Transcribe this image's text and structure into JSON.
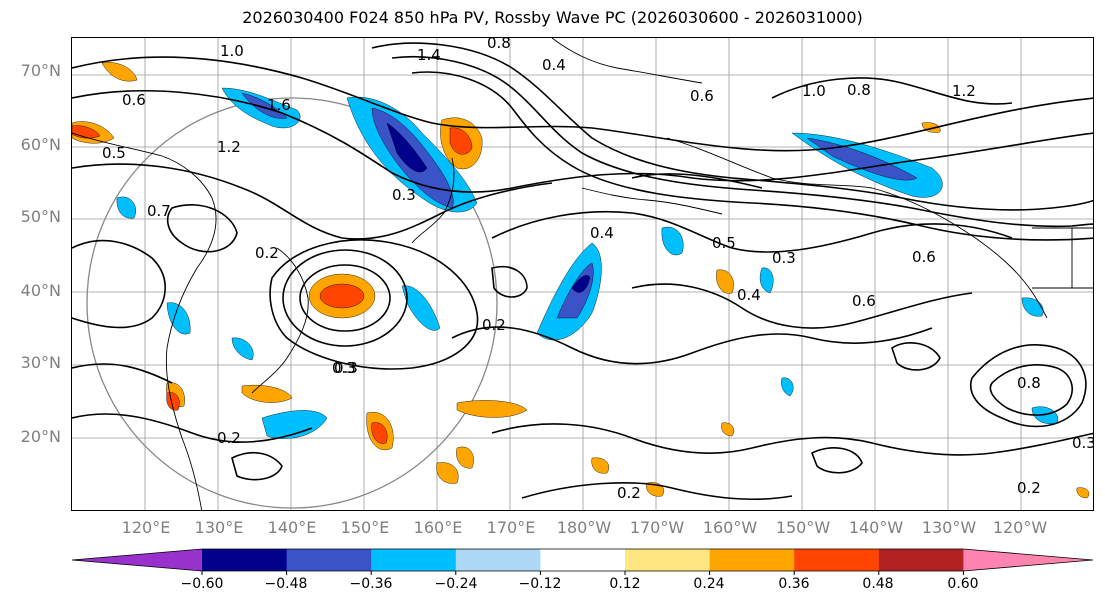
{
  "title": "2026030400 F024 850 hPa PV, Rossby Wave PC (2026030600 - 2026031000)",
  "axes": {
    "lat_labels": [
      "70°N",
      "60°N",
      "50°N",
      "40°N",
      "30°N",
      "20°N"
    ],
    "lon_labels": [
      "120°E",
      "130°E",
      "140°E",
      "150°E",
      "160°E",
      "170°E",
      "180°W",
      "170°W",
      "160°W",
      "150°W",
      "140°W",
      "130°W",
      "120°W"
    ]
  },
  "colorbar": {
    "colors": [
      "#9932cc",
      "#00008b",
      "#3a54c8",
      "#00bfff",
      "#add8f6",
      "#ffffff",
      "#ffe680",
      "#ffa500",
      "#ff4500",
      "#b22222",
      "#ff85b0"
    ],
    "tick_labels": [
      "−0.60",
      "−0.48",
      "−0.36",
      "−0.24",
      "−0.12",
      "0.12",
      "0.24",
      "0.36",
      "0.48",
      "0.60"
    ]
  },
  "contour_labels": [
    "1.0",
    "1.4",
    "0.8",
    "0.4",
    "0.6",
    "1.6",
    "1.2",
    "0.7",
    "0.5",
    "0.3",
    "0.2",
    "0.6",
    "0.4",
    "0.3",
    "0.2",
    "0.5",
    "1.0",
    "0.8",
    "1.2",
    "0.3",
    "0.6",
    "0.2",
    "0.2",
    "0.3",
    "0.8",
    "0.4",
    "0.6",
    "0.2",
    "0.3"
  ]
}
